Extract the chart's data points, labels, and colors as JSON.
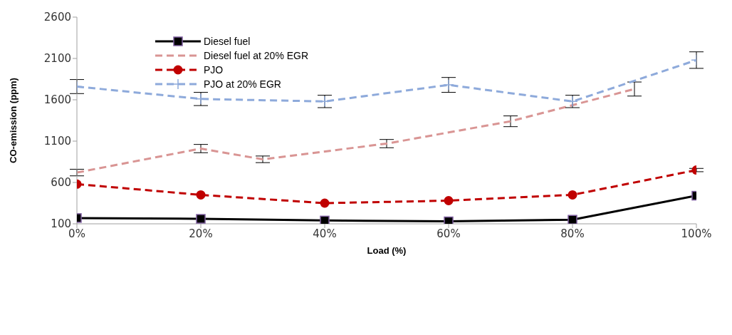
{
  "chart_data": {
    "type": "line",
    "xlabel": "Load (%)",
    "ylabel": "CO-emission (ppm)",
    "xlim": [
      0,
      100
    ],
    "xticks": [
      {
        "value": 0,
        "label": "0%"
      },
      {
        "value": 20,
        "label": "20%"
      },
      {
        "value": 40,
        "label": "40%"
      },
      {
        "value": 60,
        "label": "60%"
      },
      {
        "value": 80,
        "label": "80%"
      },
      {
        "value": 100,
        "label": "100%"
      }
    ],
    "ylim": [
      100,
      2600
    ],
    "yticks": [
      100,
      600,
      1100,
      1600,
      2100,
      2600
    ],
    "grid": false,
    "legend": "top left",
    "series": [
      {
        "name": "Diesel fuel",
        "color": "#000000",
        "marker": "square",
        "line_style": "solid",
        "x": [
          0,
          20,
          40,
          60,
          80,
          100
        ],
        "values": [
          170,
          160,
          140,
          130,
          150,
          440
        ]
      },
      {
        "name": "Diesel fuel at 20% EGR",
        "color": "#d99594",
        "marker": "none",
        "line_style": "dashed",
        "x": [
          0,
          20,
          30,
          50,
          70,
          90
        ],
        "values": [
          720,
          1010,
          880,
          1070,
          1340,
          1730
        ],
        "errors": [
          40,
          50,
          40,
          50,
          65,
          85
        ]
      },
      {
        "name": "PJO",
        "color": "#c00000",
        "marker": "circle",
        "line_style": "dashed",
        "x": [
          0,
          20,
          40,
          60,
          80,
          100
        ],
        "values": [
          580,
          450,
          350,
          380,
          450,
          750
        ],
        "errors": [
          null,
          null,
          null,
          null,
          null,
          20
        ]
      },
      {
        "name": "PJO at 20% EGR",
        "color": "#8eaadb",
        "marker": "cross",
        "line_style": "dashed",
        "x": [
          0,
          20,
          40,
          60,
          80,
          100
        ],
        "values": [
          1760,
          1610,
          1580,
          1780,
          1580,
          2080
        ],
        "errors": [
          85,
          80,
          75,
          90,
          75,
          100
        ]
      }
    ]
  }
}
